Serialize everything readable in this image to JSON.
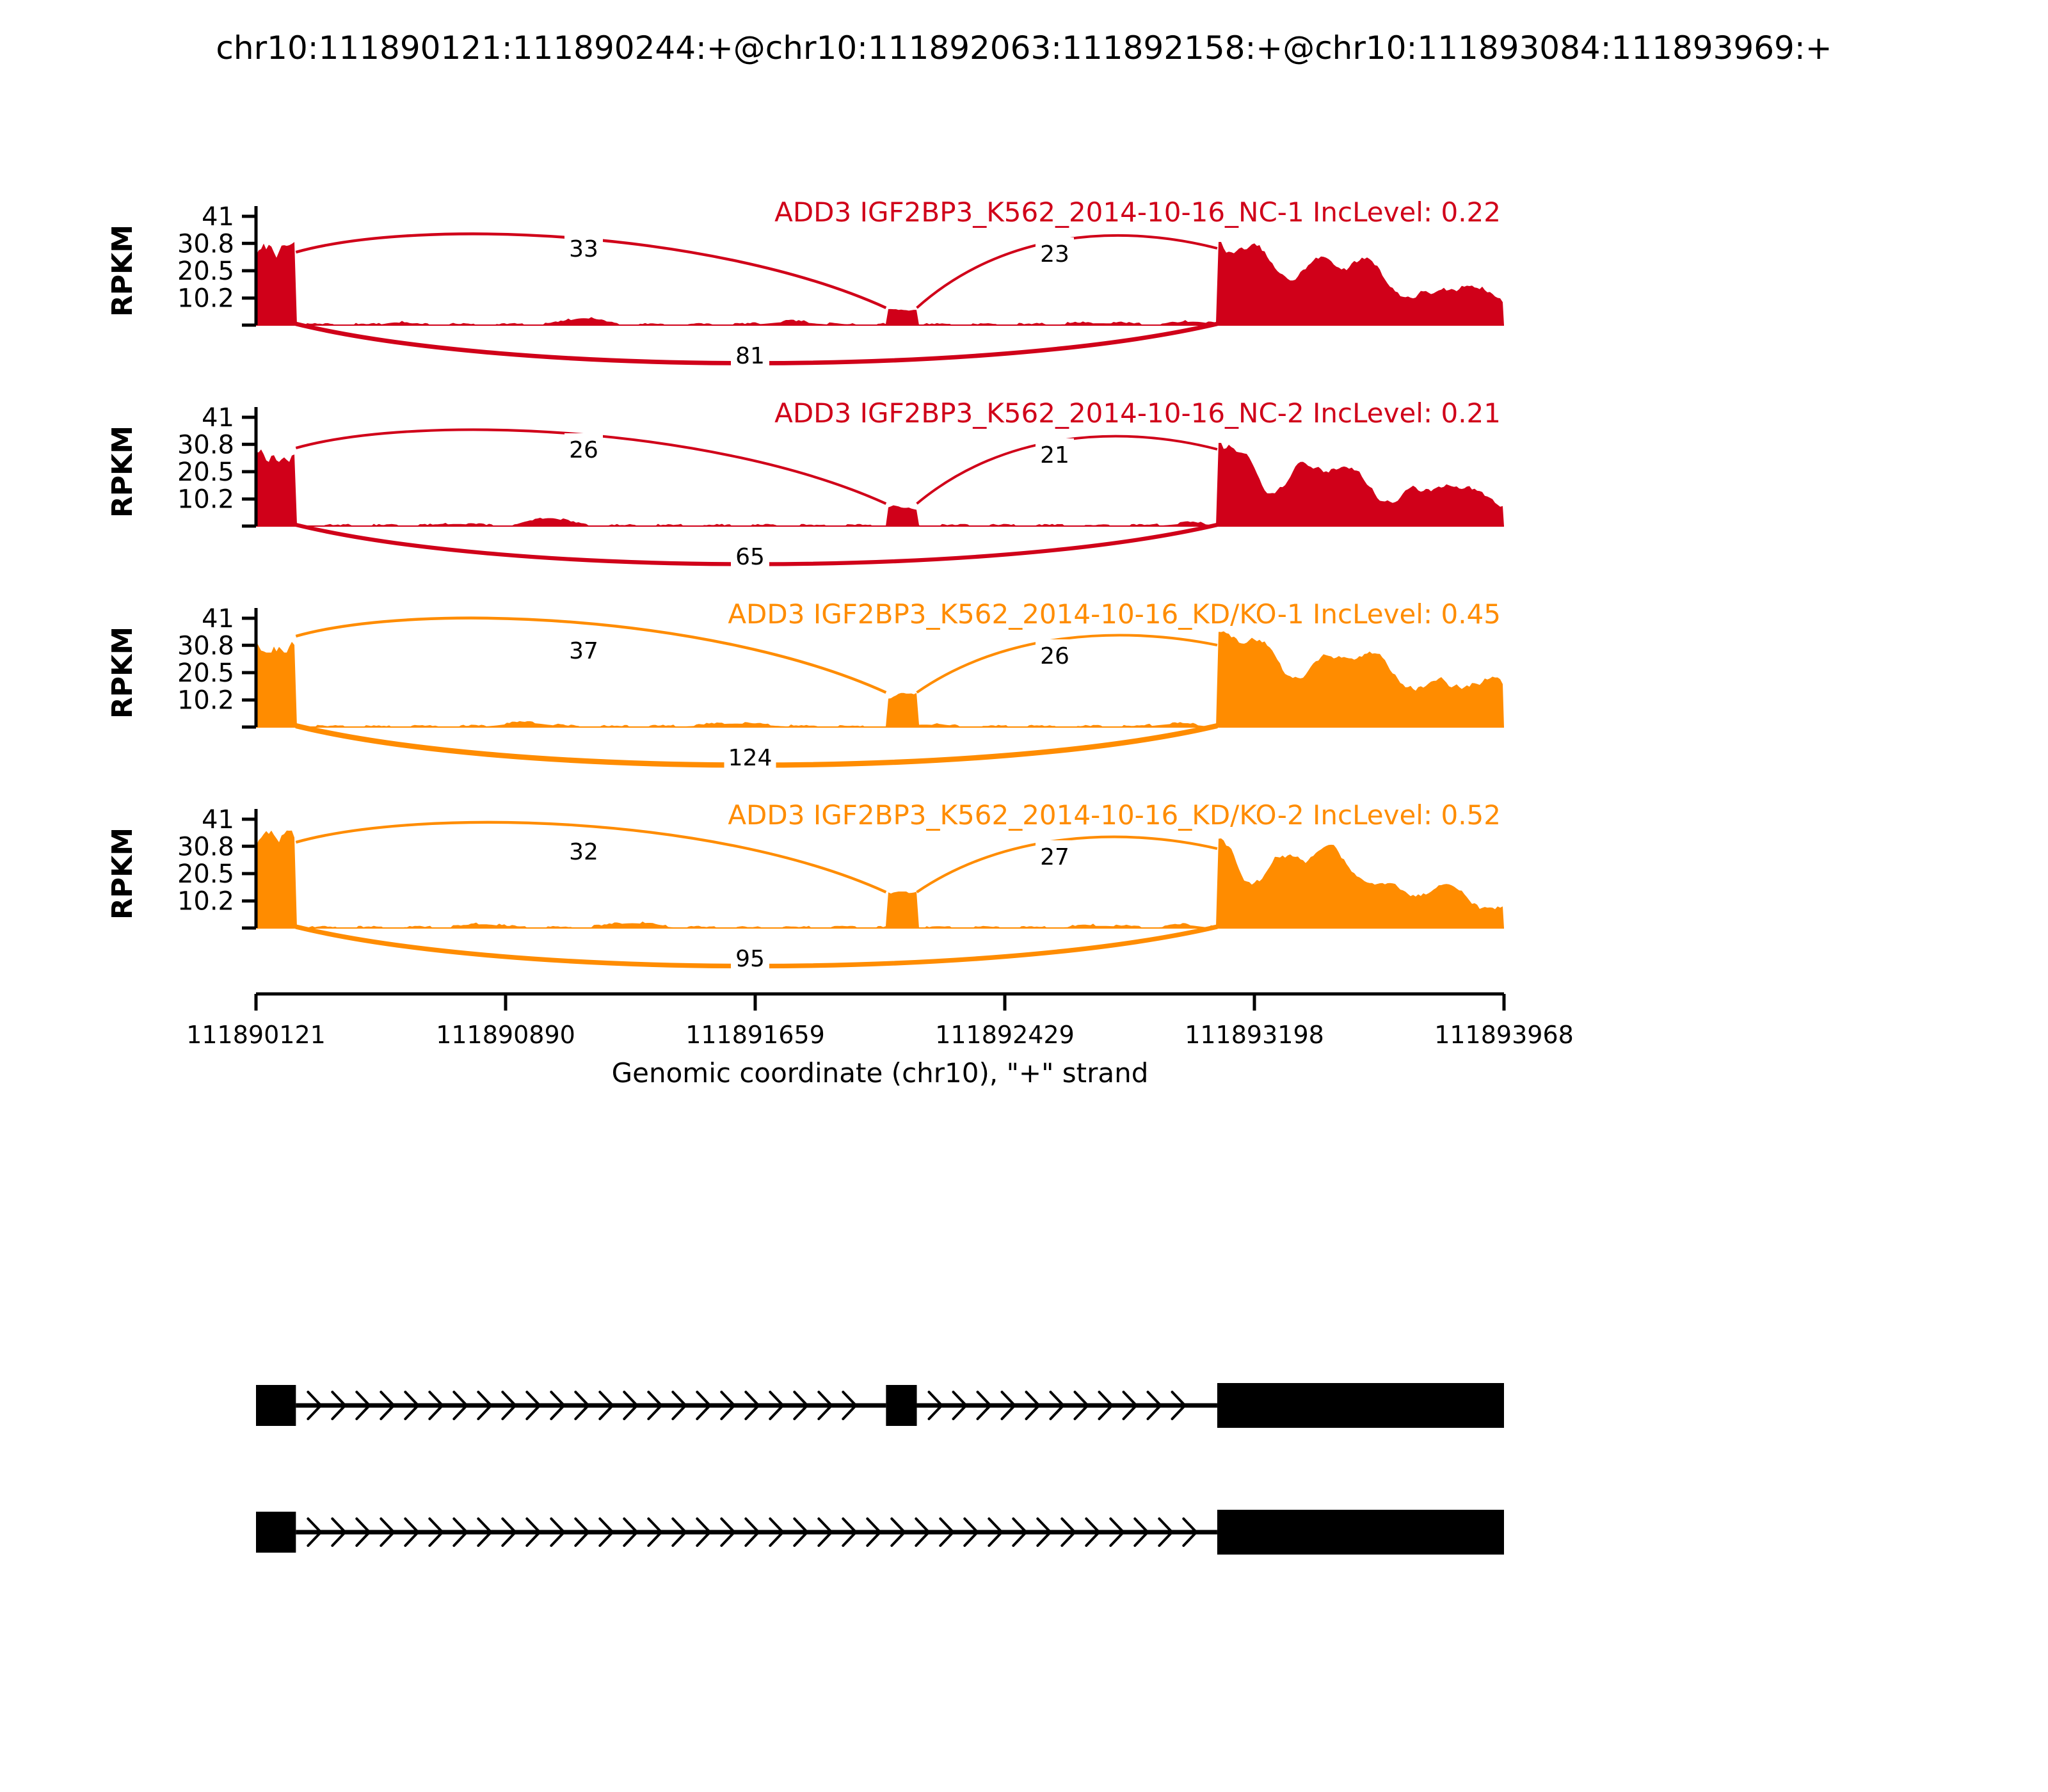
{
  "figure_title": "chr10:111890121:111890244:+@chr10:111892063:111892158:+@chr10:111893084:111893969:+",
  "colors": {
    "group1_nc": "#D00019",
    "group2_kdko": "#FF8C00",
    "axis": "#000000",
    "exon": "#000000",
    "background": "#ffffff"
  },
  "chart_data": {
    "type": "area",
    "subtype": "sashimi-plot",
    "gene": "ADD3",
    "title": "chr10:111890121:111890244:+@chr10:111892063:111892158:+@chr10:111893084:111893969:+",
    "xlabel": "Genomic coordinate (chr10), \"+\" strand",
    "ylabel": "RPKM",
    "y_ticks": [
      "41",
      "30.8",
      "20.5",
      "10.2"
    ],
    "y_max": 41,
    "x_ticks": [
      "111890121",
      "111890890",
      "111891659",
      "111892429",
      "111893198",
      "111893968"
    ],
    "x_range": [
      111890121,
      111893968
    ],
    "strand": "+",
    "chromosome": "chr10",
    "exons_bp": [
      [
        111890121,
        111890244
      ],
      [
        111892063,
        111892158
      ],
      [
        111893084,
        111893969
      ]
    ],
    "tracks": [
      {
        "label": "ADD3 IGF2BP3_K562_2014-10-16_NC-1 IncLevel: 0.22",
        "sample": "IGF2BP3_K562_2014-10-16_NC-1",
        "short": "nc-1",
        "inc_level": 0.22,
        "color": "#D00019",
        "junctions": [
          {
            "from_exon": 1,
            "to_exon": 2,
            "reads": 33
          },
          {
            "from_exon": 2,
            "to_exon": 3,
            "reads": 23
          },
          {
            "from_exon": 1,
            "to_exon": 3,
            "reads": 81
          }
        ],
        "coverage": {
          "exon1": 29,
          "exon2": 5.5,
          "exon3_start": 33,
          "exon3_end": 11,
          "seed": 7,
          "p1": 0.15,
          "p2": 0.5,
          "bumps": [
            {
              "at": 430,
              "w": 40,
              "h": 1.0
            },
            {
              "at": 1010,
              "w": 70,
              "h": 2.6
            },
            {
              "at": 1650,
              "w": 90,
              "h": 1.2
            },
            {
              "at": 2600,
              "w": 120,
              "h": 0.7
            },
            {
              "at": 2890,
              "w": 60,
              "h": 1.3
            }
          ]
        }
      },
      {
        "label": "ADD3 IGF2BP3_K562_2014-10-16_NC-2 IncLevel: 0.21",
        "sample": "IGF2BP3_K562_2014-10-16_NC-2",
        "short": "nc-2",
        "inc_level": 0.21,
        "color": "#D00019",
        "junctions": [
          {
            "from_exon": 1,
            "to_exon": 2,
            "reads": 26
          },
          {
            "from_exon": 2,
            "to_exon": 3,
            "reads": 21
          },
          {
            "from_exon": 1,
            "to_exon": 3,
            "reads": 65
          }
        ],
        "coverage": {
          "exon1": 31,
          "exon2": 7.5,
          "exon3_start": 33,
          "exon3_end": 13,
          "seed": 13,
          "p1": 0.3,
          "p2": 0.8,
          "bumps": [
            {
              "at": 620,
              "w": 60,
              "h": 0.8
            },
            {
              "at": 905,
              "w": 70,
              "h": 3.0
            },
            {
              "at": 2880,
              "w": 70,
              "h": 1.0
            }
          ]
        }
      },
      {
        "label": "ADD3 IGF2BP3_K562_2014-10-16_KD/KO-1 IncLevel: 0.45",
        "sample": "IGF2BP3_K562_2014-10-16_KD/KO-1",
        "short": "kd-ko-1",
        "inc_level": 0.45,
        "color": "#FF8C00",
        "junctions": [
          {
            "from_exon": 1,
            "to_exon": 2,
            "reads": 37
          },
          {
            "from_exon": 2,
            "to_exon": 3,
            "reads": 26
          },
          {
            "from_exon": 1,
            "to_exon": 3,
            "reads": 124
          }
        ],
        "coverage": {
          "exon1": 36,
          "exon2": 12,
          "exon3_start": 35,
          "exon3_end": 15,
          "seed": 21,
          "p1": 0.1,
          "p2": 0.35,
          "bumps": [
            {
              "at": 830,
              "w": 90,
              "h": 1.6
            },
            {
              "at": 1480,
              "w": 120,
              "h": 1.3
            },
            {
              "at": 2060,
              "w": 80,
              "h": 0.9
            },
            {
              "at": 2840,
              "w": 80,
              "h": 1.2
            }
          ]
        }
      },
      {
        "label": "ADD3 IGF2BP3_K562_2014-10-16_KD/KO-2 IncLevel: 0.52",
        "sample": "IGF2BP3_K562_2014-10-16_KD/KO-2",
        "short": "kd-ko-2",
        "inc_level": 0.52,
        "color": "#FF8C00",
        "junctions": [
          {
            "from_exon": 1,
            "to_exon": 2,
            "reads": 32
          },
          {
            "from_exon": 2,
            "to_exon": 3,
            "reads": 27
          },
          {
            "from_exon": 1,
            "to_exon": 3,
            "reads": 95
          }
        ],
        "coverage": {
          "exon1": 34,
          "exon2": 12.5,
          "exon3_start": 34,
          "exon3_end": 14,
          "seed": 29,
          "p1": 0.42,
          "p2": 0.12,
          "bumps": [
            {
              "at": 700,
              "w": 70,
              "h": 1.4
            },
            {
              "at": 1160,
              "w": 90,
              "h": 1.8
            },
            {
              "at": 2600,
              "w": 100,
              "h": 0.8
            },
            {
              "at": 2860,
              "w": 60,
              "h": 1.1
            }
          ]
        }
      }
    ],
    "isoforms": [
      {
        "name": "inclusion",
        "exons": [
          1,
          2,
          3
        ]
      },
      {
        "name": "skipping",
        "exons": [
          1,
          3
        ]
      }
    ]
  }
}
